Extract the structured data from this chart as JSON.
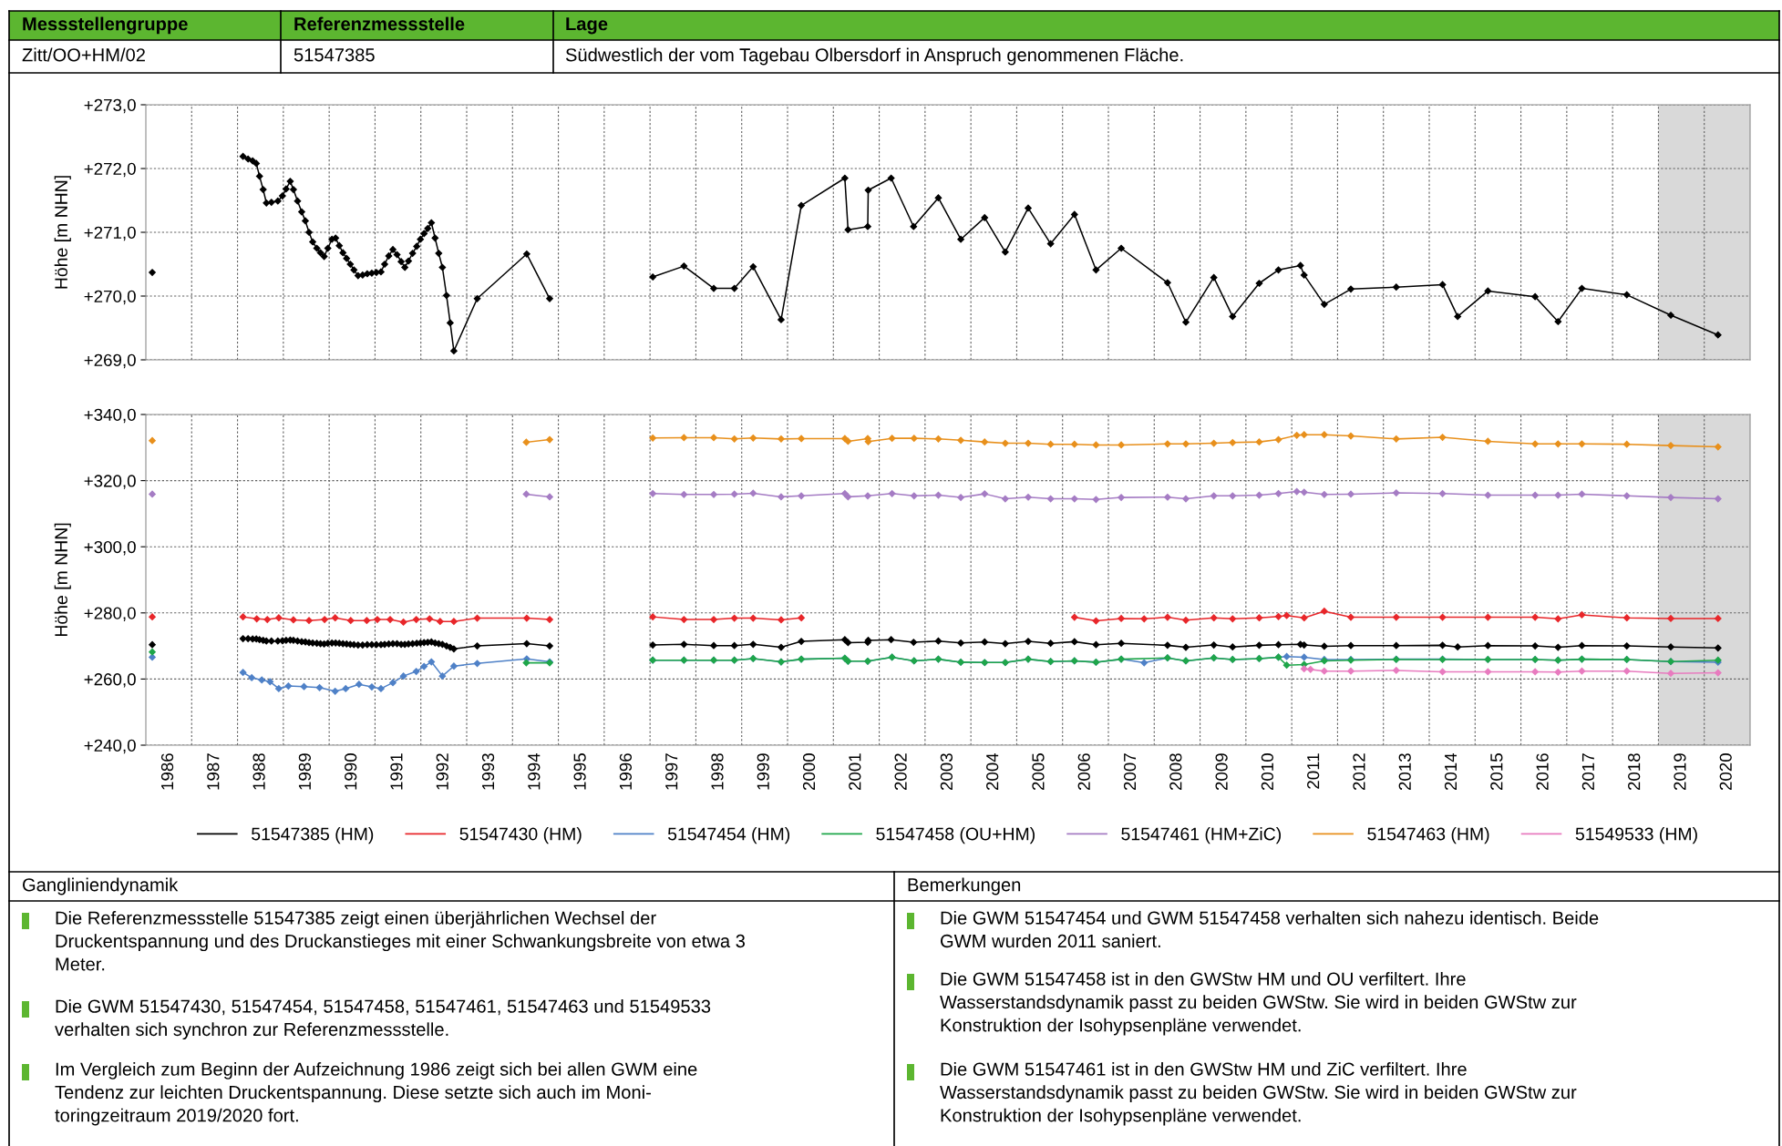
{
  "chart_data": [
    {
      "type": "line",
      "ylabel": "Höhe [m NHN]",
      "xlim": [
        1986,
        2021
      ],
      "ylim": [
        269,
        273
      ],
      "xticks": [
        {
          "value": 1987,
          "label": null
        },
        {
          "value": 1988,
          "label": null
        },
        {
          "value": 1989,
          "label": null
        },
        {
          "value": 1990,
          "label": null
        },
        {
          "value": 1991,
          "label": null
        },
        {
          "value": 1992,
          "label": null
        },
        {
          "value": 1993,
          "label": null
        },
        {
          "value": 1994,
          "label": null
        },
        {
          "value": 1995,
          "label": null
        },
        {
          "value": 1996,
          "label": null
        },
        {
          "value": 1997,
          "label": null
        },
        {
          "value": 1998,
          "label": null
        },
        {
          "value": 1999,
          "label": null
        },
        {
          "value": 2000,
          "label": null
        },
        {
          "value": 2001,
          "label": null
        },
        {
          "value": 2002,
          "label": null
        },
        {
          "value": 2003,
          "label": null
        },
        {
          "value": 2004,
          "label": null
        },
        {
          "value": 2005,
          "label": null
        },
        {
          "value": 2006,
          "label": null
        },
        {
          "value": 2007,
          "label": null
        },
        {
          "value": 2008,
          "label": null
        },
        {
          "value": 2009,
          "label": null
        },
        {
          "value": 2010,
          "label": null
        },
        {
          "value": 2011,
          "label": null
        },
        {
          "value": 2012,
          "label": null
        },
        {
          "value": 2013,
          "label": null
        },
        {
          "value": 2014,
          "label": null
        },
        {
          "value": 2015,
          "label": null
        },
        {
          "value": 2016,
          "label": null
        },
        {
          "value": 2017,
          "label": null
        },
        {
          "value": 2018,
          "label": null
        },
        {
          "value": 2019,
          "label": null
        },
        {
          "value": 2020,
          "label": null
        }
      ],
      "yticks": [
        {
          "value": 269,
          "label": "+269,0"
        },
        {
          "value": 270,
          "label": "+270,0"
        },
        {
          "value": 271,
          "label": "+271,0"
        },
        {
          "value": 272,
          "label": "+272,0"
        },
        {
          "value": 273,
          "label": "+273,0"
        }
      ],
      "grid": true,
      "marker": "diamond",
      "tick_labels": "y",
      "bands": [
        {
          "axis": "x",
          "from": 2019,
          "to": 2021,
          "color": "#d9d9d9"
        }
      ],
      "series": [
        {
          "color": "#000000",
          "x": [
            1986.14,
            null,
            1988.12,
            1988.23,
            1988.33,
            1988.41,
            1988.48,
            1988.56,
            1988.63,
            1988.74,
            1988.88,
            1988.98,
            1989.06,
            1989.15,
            1989.22,
            1989.31,
            1989.4,
            1989.48,
            1989.56,
            1989.64,
            1989.73,
            1989.81,
            1989.89,
            1989.97,
            1990.06,
            1990.14,
            1990.22,
            1990.3,
            1990.38,
            1990.46,
            1990.54,
            1990.63,
            1990.73,
            1990.83,
            1990.93,
            1991.03,
            1991.13,
            1991.21,
            1991.3,
            1991.39,
            1991.48,
            1991.57,
            1991.65,
            1991.73,
            1991.82,
            1991.91,
            1991.99,
            1992.07,
            1992.15,
            1992.23,
            1992.31,
            1992.39,
            1992.47,
            1992.56,
            1992.64,
            1992.72,
            1993.23,
            1994.31,
            1994.81,
            null,
            1997.06,
            1997.74,
            1998.39,
            1998.84,
            1999.25,
            1999.86,
            2000.3,
            2001.25,
            2001.32,
            2001.75,
            2001.76,
            2002.26,
            2002.75,
            2003.29,
            2003.78,
            2004.3,
            2004.75,
            2005.25,
            2005.74,
            2006.26,
            2006.73,
            2007.28,
            2008.29,
            2008.69,
            2009.3,
            2009.71,
            2010.29,
            2010.71,
            2011.19,
            2011.27,
            2011.71,
            2012.29,
            2013.28,
            2014.29,
            2014.62,
            2015.28,
            2016.31,
            2016.81,
            2017.33,
            2018.31,
            2019.27,
            2020.3
          ],
          "values": [
            270.37,
            null,
            272.19,
            272.15,
            272.12,
            272.08,
            271.88,
            271.67,
            271.46,
            271.47,
            271.49,
            271.57,
            271.68,
            271.8,
            271.67,
            271.49,
            271.32,
            271.18,
            271.0,
            270.85,
            270.75,
            270.68,
            270.62,
            270.75,
            270.89,
            270.91,
            270.79,
            270.68,
            270.59,
            270.5,
            270.41,
            270.32,
            270.33,
            270.35,
            270.36,
            270.37,
            270.38,
            270.5,
            270.63,
            270.73,
            270.65,
            270.54,
            270.45,
            270.55,
            270.67,
            270.78,
            270.89,
            270.98,
            271.06,
            271.15,
            270.91,
            270.67,
            270.45,
            270.01,
            269.58,
            269.14,
            269.96,
            270.66,
            269.96,
            null,
            270.3,
            270.47,
            270.12,
            270.12,
            270.46,
            269.63,
            271.42,
            271.85,
            271.04,
            271.09,
            271.66,
            271.85,
            271.09,
            271.54,
            270.89,
            271.23,
            270.69,
            271.38,
            270.82,
            271.28,
            270.41,
            270.75,
            270.21,
            269.59,
            270.29,
            269.68,
            270.2,
            270.41,
            270.48,
            270.33,
            269.87,
            270.11,
            270.14,
            270.18,
            269.68,
            270.08,
            269.99,
            269.6,
            270.12,
            270.02,
            269.7,
            269.39
          ]
        }
      ],
      "annotations": [
        "Messstellengruppe",
        "Referenzmessstelle",
        "Lage",
        "Zitt/OO+HM/02",
        "51547385",
        "Südwestlich der vom Tagebau Olbersdorf in Anspruch genommenen Fläche."
      ]
    },
    {
      "type": "line",
      "ylabel": "Höhe [m NHN]",
      "xlim": [
        1986,
        2021
      ],
      "ylim": [
        240,
        340
      ],
      "xticks": [
        {
          "value": 1986.5,
          "label": "1986"
        },
        {
          "value": 1987,
          "label": null
        },
        {
          "value": 1987.5,
          "label": "1987"
        },
        {
          "value": 1988,
          "label": null
        },
        {
          "value": 1988.5,
          "label": "1988"
        },
        {
          "value": 1989,
          "label": null
        },
        {
          "value": 1989.5,
          "label": "1989"
        },
        {
          "value": 1990,
          "label": null
        },
        {
          "value": 1990.5,
          "label": "1990"
        },
        {
          "value": 1991,
          "label": null
        },
        {
          "value": 1991.5,
          "label": "1991"
        },
        {
          "value": 1992,
          "label": null
        },
        {
          "value": 1992.5,
          "label": "1992"
        },
        {
          "value": 1993,
          "label": null
        },
        {
          "value": 1993.5,
          "label": "1993"
        },
        {
          "value": 1994,
          "label": null
        },
        {
          "value": 1994.5,
          "label": "1994"
        },
        {
          "value": 1995,
          "label": null
        },
        {
          "value": 1995.5,
          "label": "1995"
        },
        {
          "value": 1996,
          "label": null
        },
        {
          "value": 1996.5,
          "label": "1996"
        },
        {
          "value": 1997,
          "label": null
        },
        {
          "value": 1997.5,
          "label": "1997"
        },
        {
          "value": 1998,
          "label": null
        },
        {
          "value": 1998.5,
          "label": "1998"
        },
        {
          "value": 1999,
          "label": null
        },
        {
          "value": 1999.5,
          "label": "1999"
        },
        {
          "value": 2000,
          "label": null
        },
        {
          "value": 2000.5,
          "label": "2000"
        },
        {
          "value": 2001,
          "label": null
        },
        {
          "value": 2001.5,
          "label": "2001"
        },
        {
          "value": 2002,
          "label": null
        },
        {
          "value": 2002.5,
          "label": "2002"
        },
        {
          "value": 2003,
          "label": null
        },
        {
          "value": 2003.5,
          "label": "2003"
        },
        {
          "value": 2004,
          "label": null
        },
        {
          "value": 2004.5,
          "label": "2004"
        },
        {
          "value": 2005,
          "label": null
        },
        {
          "value": 2005.5,
          "label": "2005"
        },
        {
          "value": 2006,
          "label": null
        },
        {
          "value": 2006.5,
          "label": "2006"
        },
        {
          "value": 2007,
          "label": null
        },
        {
          "value": 2007.5,
          "label": "2007"
        },
        {
          "value": 2008,
          "label": null
        },
        {
          "value": 2008.5,
          "label": "2008"
        },
        {
          "value": 2009,
          "label": null
        },
        {
          "value": 2009.5,
          "label": "2009"
        },
        {
          "value": 2010,
          "label": null
        },
        {
          "value": 2010.5,
          "label": "2010"
        },
        {
          "value": 2011,
          "label": null
        },
        {
          "value": 2011.5,
          "label": "2011"
        },
        {
          "value": 2012,
          "label": null
        },
        {
          "value": 2012.5,
          "label": "2012"
        },
        {
          "value": 2013,
          "label": null
        },
        {
          "value": 2013.5,
          "label": "2013"
        },
        {
          "value": 2014,
          "label": null
        },
        {
          "value": 2014.5,
          "label": "2014"
        },
        {
          "value": 2015,
          "label": null
        },
        {
          "value": 2015.5,
          "label": "2015"
        },
        {
          "value": 2016,
          "label": null
        },
        {
          "value": 2016.5,
          "label": "2016"
        },
        {
          "value": 2017,
          "label": null
        },
        {
          "value": 2017.5,
          "label": "2017"
        },
        {
          "value": 2018,
          "label": null
        },
        {
          "value": 2018.5,
          "label": "2018"
        },
        {
          "value": 2019,
          "label": null
        },
        {
          "value": 2019.5,
          "label": "2019"
        },
        {
          "value": 2020,
          "label": null
        },
        {
          "value": 2020.5,
          "label": "2020"
        }
      ],
      "yticks": [
        {
          "value": 240,
          "label": "+240,0"
        },
        {
          "value": 260,
          "label": "+260,0"
        },
        {
          "value": 280,
          "label": "+280,0"
        },
        {
          "value": 300,
          "label": "+300,0"
        },
        {
          "value": 320,
          "label": "+320,0"
        },
        {
          "value": 340,
          "label": "+340,0"
        }
      ],
      "grid": true,
      "marker": "diamond",
      "legend": "bottom",
      "bands": [
        {
          "axis": "x",
          "from": 2019,
          "to": 2021,
          "color": "#d9d9d9"
        }
      ],
      "series": [
        {
          "name": "51547385 (HM)",
          "color": "#000000",
          "x": [
            1986.14,
            null,
            1988.12,
            1988.23,
            1988.33,
            1988.41,
            1988.48,
            1988.56,
            1988.63,
            1988.74,
            1988.88,
            1988.98,
            1989.06,
            1989.15,
            1989.22,
            1989.31,
            1989.4,
            1989.48,
            1989.56,
            1989.64,
            1989.73,
            1989.81,
            1989.89,
            1989.97,
            1990.06,
            1990.14,
            1990.22,
            1990.3,
            1990.38,
            1990.46,
            1990.54,
            1990.63,
            1990.73,
            1990.83,
            1990.93,
            1991.03,
            1991.13,
            1991.21,
            1991.3,
            1991.39,
            1991.48,
            1991.57,
            1991.65,
            1991.73,
            1991.82,
            1991.91,
            1991.99,
            1992.07,
            1992.15,
            1992.23,
            1992.31,
            1992.39,
            1992.47,
            1992.56,
            1992.64,
            1992.72,
            1993.23,
            1994.31,
            1994.81,
            null,
            1997.06,
            1997.74,
            1998.39,
            1998.84,
            1999.25,
            1999.86,
            2000.3,
            2001.25,
            2001.32,
            2001.75,
            2001.76,
            2002.26,
            2002.75,
            2003.29,
            2003.78,
            2004.3,
            2004.75,
            2005.25,
            2005.74,
            2006.26,
            2006.73,
            2007.28,
            2008.29,
            2008.69,
            2009.3,
            2009.71,
            2010.29,
            2010.71,
            2011.19,
            2011.27,
            2011.71,
            2012.29,
            2013.28,
            2014.29,
            2014.62,
            2015.28,
            2016.31,
            2016.81,
            2017.33,
            2018.31,
            2019.27,
            2020.3
          ],
          "values": [
            270.4,
            null,
            272.2,
            272.2,
            272.1,
            272.1,
            271.9,
            271.7,
            271.5,
            271.5,
            271.5,
            271.6,
            271.7,
            271.8,
            271.7,
            271.5,
            271.3,
            271.2,
            271.0,
            270.9,
            270.8,
            270.7,
            270.6,
            270.8,
            270.9,
            270.9,
            270.8,
            270.7,
            270.6,
            270.5,
            270.4,
            270.3,
            270.3,
            270.4,
            270.4,
            270.4,
            270.4,
            270.5,
            270.6,
            270.7,
            270.7,
            270.5,
            270.5,
            270.6,
            270.7,
            270.8,
            270.9,
            271.0,
            271.1,
            271.2,
            270.9,
            270.7,
            270.5,
            270.0,
            269.6,
            269.1,
            270.0,
            270.7,
            270.0,
            null,
            270.3,
            270.5,
            270.1,
            270.1,
            270.5,
            269.6,
            271.4,
            271.9,
            271.0,
            271.1,
            271.7,
            271.9,
            271.1,
            271.5,
            270.9,
            271.2,
            270.7,
            271.4,
            270.8,
            271.3,
            270.4,
            270.8,
            270.2,
            269.6,
            270.3,
            269.7,
            270.2,
            270.4,
            270.5,
            270.3,
            269.9,
            270.1,
            270.1,
            270.2,
            269.7,
            270.1,
            270.0,
            269.6,
            270.1,
            270.0,
            269.7,
            269.4
          ]
        },
        {
          "name": "51547430 (HM)",
          "color": "#e8262a",
          "x": [
            1986.14,
            null,
            1988.12,
            1988.42,
            1988.65,
            1988.9,
            1989.22,
            1989.56,
            1989.9,
            1990.13,
            1990.47,
            1990.82,
            1991.05,
            1991.33,
            1991.62,
            1991.9,
            1992.19,
            1992.42,
            1992.72,
            1993.23,
            1994.31,
            1994.81,
            null,
            1997.06,
            1997.74,
            1998.39,
            1998.84,
            1999.25,
            1999.86,
            2000.3,
            null,
            2006.26,
            2006.73,
            2007.28,
            2007.78,
            2008.29,
            2008.69,
            2009.3,
            2009.71,
            2010.29,
            2010.71,
            2010.89,
            2011.27,
            2011.71,
            2012.29,
            2013.28,
            2014.29,
            2015.28,
            2016.31,
            2016.81,
            2017.33,
            2018.31,
            2019.27,
            2020.3
          ],
          "values": [
            278.8,
            null,
            278.8,
            278.2,
            278.0,
            278.5,
            277.9,
            277.7,
            278.0,
            278.5,
            277.7,
            277.7,
            278.0,
            278.0,
            277.2,
            278.0,
            278.2,
            277.4,
            277.4,
            278.4,
            278.4,
            278.0,
            null,
            278.8,
            278.0,
            278.0,
            278.4,
            278.4,
            277.9,
            278.5,
            null,
            278.7,
            277.6,
            278.3,
            278.2,
            278.7,
            277.8,
            278.5,
            278.2,
            278.5,
            278.9,
            279.2,
            278.5,
            280.5,
            278.7,
            278.7,
            278.7,
            278.7,
            278.7,
            278.2,
            279.4,
            278.5,
            278.3,
            278.3
          ]
        },
        {
          "name": "51547454 (HM)",
          "color": "#4f81c7",
          "x": [
            1986.14,
            null,
            1988.12,
            1988.31,
            1988.53,
            1988.71,
            1988.9,
            1989.11,
            1989.45,
            1989.79,
            1990.13,
            1990.36,
            1990.65,
            1990.93,
            1991.13,
            1991.39,
            1991.62,
            1991.9,
            1992.07,
            1992.23,
            1992.47,
            1992.72,
            1993.23,
            1994.31,
            1994.81,
            null,
            1997.06,
            1997.74,
            1998.39,
            1998.84,
            1999.25,
            1999.86,
            2000.3,
            2001.25,
            2001.32,
            2001.75,
            2002.28,
            2002.76,
            2003.29,
            2003.78,
            2004.3,
            2004.75,
            2005.25,
            2005.74,
            2006.26,
            2006.73,
            2007.28,
            2007.78,
            2008.29,
            2008.69,
            2009.3,
            2009.71,
            2010.29,
            2010.71,
            2010.89,
            2011.27,
            2011.71,
            2012.29,
            2013.28,
            2014.29,
            2015.28,
            2016.31,
            2016.81,
            2017.33,
            2018.31,
            2019.27,
            2020.3
          ],
          "values": [
            266.6,
            null,
            262.0,
            260.4,
            259.7,
            259.2,
            257.1,
            257.9,
            257.7,
            257.4,
            256.3,
            257.1,
            258.4,
            257.6,
            257.1,
            258.9,
            260.9,
            262.3,
            263.8,
            265.2,
            260.9,
            263.9,
            264.7,
            266.1,
            265.2,
            null,
            265.7,
            265.7,
            265.7,
            265.7,
            266.2,
            265.2,
            266.0,
            266.3,
            265.4,
            265.4,
            266.6,
            265.5,
            266.0,
            265.1,
            265.0,
            265.0,
            266.0,
            265.3,
            265.5,
            265.1,
            266.0,
            264.9,
            266.4,
            265.5,
            266.4,
            265.9,
            266.2,
            266.6,
            266.8,
            266.6,
            265.9,
            265.9,
            266.0,
            266.0,
            265.9,
            265.9,
            265.7,
            266.0,
            265.9,
            265.3,
            265.1
          ]
        },
        {
          "name": "51547458 (OU+HM)",
          "color": "#1fa64a",
          "x": [
            1986.14,
            null,
            1994.3,
            1994.81,
            null,
            1997.06,
            1997.74,
            1998.39,
            1998.84,
            1999.25,
            1999.86,
            2000.3,
            2001.25,
            2001.32,
            2001.75,
            2002.28,
            2002.76,
            2003.29,
            2003.78,
            2004.3,
            2004.75,
            2005.25,
            2005.74,
            2006.26,
            2006.73,
            2007.28,
            2008.29,
            2008.69,
            2009.3,
            2009.71,
            2010.29,
            2010.71,
            2010.89,
            2011.27,
            2011.71,
            2012.29,
            2013.28,
            2014.29,
            2015.28,
            2016.31,
            2016.81,
            2017.33,
            2018.31,
            2019.27,
            2020.3
          ],
          "values": [
            268.2,
            null,
            264.9,
            264.9,
            null,
            265.7,
            265.7,
            265.7,
            265.7,
            266.2,
            265.2,
            266.0,
            266.3,
            265.4,
            265.4,
            266.6,
            265.5,
            266.0,
            265.1,
            265.0,
            265.0,
            266.0,
            265.3,
            265.5,
            265.1,
            266.0,
            266.4,
            265.5,
            266.4,
            265.9,
            266.2,
            266.6,
            264.2,
            264.4,
            265.5,
            265.7,
            265.9,
            265.9,
            265.9,
            265.9,
            265.7,
            266.0,
            265.9,
            265.3,
            265.7
          ]
        },
        {
          "name": "51547461 (HM+ZiC)",
          "color": "#a57cc4",
          "x": [
            1986.14,
            null,
            1994.3,
            1994.81,
            null,
            1997.06,
            1997.74,
            1998.39,
            1998.84,
            1999.25,
            1999.86,
            2000.3,
            2001.25,
            2001.32,
            2001.75,
            2002.28,
            2002.76,
            2003.29,
            2003.78,
            2004.3,
            2004.75,
            2005.25,
            2005.74,
            2006.26,
            2006.73,
            2007.28,
            2008.29,
            2008.69,
            2009.3,
            2009.71,
            2010.29,
            2010.71,
            2011.11,
            2011.27,
            2011.71,
            2012.29,
            2013.28,
            2014.29,
            2015.28,
            2016.31,
            2016.81,
            2017.33,
            2018.31,
            2019.27,
            2020.3
          ],
          "values": [
            315.9,
            null,
            315.9,
            315.1,
            null,
            316.1,
            315.8,
            315.8,
            315.9,
            316.2,
            315.1,
            315.4,
            316.1,
            315.1,
            315.4,
            316.1,
            315.4,
            315.6,
            314.9,
            316.0,
            314.5,
            315.0,
            314.5,
            314.5,
            314.3,
            314.9,
            315.0,
            314.5,
            315.4,
            315.4,
            315.6,
            316.1,
            316.7,
            316.5,
            315.8,
            315.9,
            316.3,
            316.1,
            315.6,
            315.6,
            315.6,
            315.9,
            315.4,
            314.9,
            314.5
          ]
        },
        {
          "name": "51547463 (HM)",
          "color": "#e8901c",
          "x": [
            1986.14,
            null,
            1994.3,
            1994.81,
            null,
            1997.06,
            1997.74,
            1998.39,
            1998.84,
            1999.25,
            1999.86,
            2000.3,
            2001.25,
            2001.32,
            2001.75,
            2001.76,
            2002.28,
            2002.76,
            2003.29,
            2003.78,
            2004.3,
            2004.75,
            2005.25,
            2005.74,
            2006.26,
            2006.73,
            2007.28,
            2008.29,
            2008.69,
            2009.3,
            2009.71,
            2010.29,
            2010.71,
            2011.11,
            2011.27,
            2011.71,
            2012.29,
            2013.28,
            2014.29,
            2015.28,
            2016.31,
            2016.81,
            2017.33,
            2018.31,
            2019.27,
            2020.3
          ],
          "values": [
            332.1,
            null,
            331.6,
            332.4,
            null,
            332.9,
            333.0,
            333.0,
            332.6,
            332.9,
            332.6,
            332.7,
            332.7,
            331.9,
            332.7,
            331.8,
            332.8,
            332.8,
            332.6,
            332.2,
            331.7,
            331.3,
            331.3,
            331.0,
            331.0,
            330.8,
            330.8,
            331.1,
            331.1,
            331.3,
            331.5,
            331.7,
            332.4,
            333.7,
            333.9,
            333.9,
            333.5,
            332.6,
            333.1,
            331.9,
            331.1,
            331.1,
            331.1,
            331.0,
            330.6,
            330.2
          ]
        },
        {
          "name": "51549533 (HM)",
          "color": "#e87bbf",
          "x": [
            2011.27,
            2011.41,
            2011.71,
            2012.29,
            2013.28,
            2014.29,
            2015.28,
            2016.31,
            2016.81,
            2017.33,
            2018.31,
            2019.27,
            2020.3
          ],
          "values": [
            263.1,
            262.9,
            262.4,
            262.4,
            262.6,
            262.2,
            262.2,
            262.2,
            262.1,
            262.4,
            262.4,
            261.7,
            261.9
          ]
        }
      ],
      "annotations": [
        "Gangliniendynamik",
        "Die Referenzmessstelle 51547385 zeigt einen überjährlichen Wechsel der\nDruckentspannung und des Druckanstieges mit einer Schwankungsbreite von etwa 3\nMeter.",
        "Die GWM 51547430, 51547454, 51547458, 51547461, 51547463 und 51549533\nverhalten sich synchron zur Referenzmessstelle.",
        "Im Vergleich zum Beginn der Aufzeichnung 1986 zeigt sich bei allen GWM eine\nTendenz zur leichten Druckentspannung. Diese setzte sich auch im Moni-\ntoringzeitraum 2019/2020 fort.",
        "Bemerkungen",
        "Die GWM 51547454 und GWM 51547458 verhalten sich nahezu identisch. Beide\nGWM wurden 2011 saniert.",
        "Die GWM 51547458 ist in den GWStw HM und OU verfiltert. Ihre\nWasserstandsdynamik passt zu beiden GWStw. Sie wird in beiden GWStw zur\nKonstruktion der Isohypsenpläne verwendet.",
        "Die GWM 51547461 ist in den GWStw HM und ZiC verfiltert. Ihre\nWasserstandsdynamik passt zu beiden GWStw. Sie wird in beiden GWStw zur\nKonstruktion der Isohypsenpläne verwendet."
      ]
    }
  ]
}
